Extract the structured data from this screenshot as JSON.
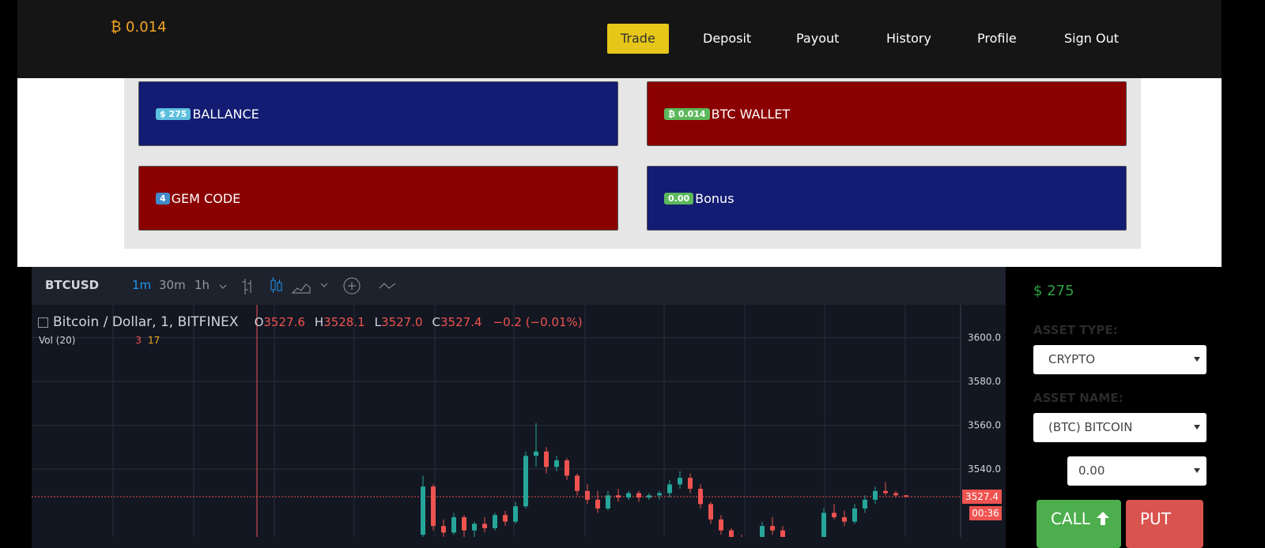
{
  "nav": {
    "balance": "₿ 0.014",
    "links": [
      "Trade",
      "Deposit",
      "Payout",
      "History",
      "Profile",
      "Sign Out"
    ]
  },
  "cards": [
    {
      "badge": "$ 275",
      "label": "BALLANCE"
    },
    {
      "badge": "₿ 0.014",
      "label": "BTC WALLET"
    },
    {
      "badge": "4",
      "label": "GEM CODE"
    },
    {
      "badge": "0.00",
      "label": "Bonus"
    }
  ],
  "toolbar": {
    "symbol": "BTCUSD",
    "intervals": [
      "1m",
      "30m",
      "1h"
    ]
  },
  "chart_data": {
    "type": "candlestick",
    "title": "Bitcoin / Dollar, 1, BITFINEX",
    "ohlc_legend": [
      {
        "key": "O",
        "value": "3527.6"
      },
      {
        "key": "H",
        "value": "3528.1"
      },
      {
        "key": "L",
        "value": "3527.0"
      },
      {
        "key": "C",
        "value": "3527.4"
      }
    ],
    "change": "−0.2 (−0.01%)",
    "volume_label": "Vol (20)",
    "volume_values": [
      "3",
      "17"
    ],
    "last_price_label": "3527.4",
    "countdown": "00:36",
    "up_color": "#26a69a",
    "down_color": "#ef5350",
    "ylim": [
      3509,
      3615
    ],
    "yticks": [
      {
        "value": 3600,
        "label": "3600.0"
      },
      {
        "value": 3580,
        "label": "3580.0"
      },
      {
        "value": 3560,
        "label": "3560.0"
      },
      {
        "value": 3540,
        "label": "3540.0"
      }
    ],
    "open": [
      3510,
      3532,
      3514,
      3511,
      3518,
      3512,
      3515,
      3513,
      3519,
      3516,
      3523,
      3546,
      3548,
      3541,
      3544,
      3537,
      3530,
      3526,
      3522,
      3528,
      3527,
      3529,
      3527,
      3528,
      3529,
      3533,
      3536,
      3531,
      3524,
      3517,
      3512,
      3507,
      3505,
      3506,
      3514,
      3512,
      3506,
      3503,
      3505,
      3507,
      3520,
      3518,
      3516,
      3522,
      3526,
      3530,
      3529,
      3528
    ],
    "high": [
      3537,
      3533,
      3517,
      3520,
      3519,
      3516,
      3518,
      3520,
      3521,
      3525,
      3548,
      3561,
      3550,
      3546,
      3545,
      3538,
      3533,
      3530,
      3530,
      3531,
      3530,
      3530,
      3529,
      3530,
      3535,
      3539,
      3538,
      3533,
      3525,
      3519,
      3513,
      3510,
      3508,
      3516,
      3518,
      3514,
      3508,
      3507,
      3509,
      3522,
      3524,
      3521,
      3524,
      3528,
      3532,
      3534,
      3530,
      3528.1
    ],
    "low": [
      3508,
      3512,
      3508,
      3510,
      3509,
      3506,
      3511,
      3512,
      3514,
      3515,
      3522,
      3541,
      3538,
      3539,
      3535,
      3528,
      3524,
      3520,
      3521,
      3525,
      3526,
      3525,
      3526,
      3526,
      3527,
      3531,
      3529,
      3522,
      3515,
      3510,
      3505,
      3503,
      3501,
      3505,
      3510,
      3504,
      3500,
      3500,
      3503,
      3506,
      3517,
      3514,
      3515,
      3520,
      3524,
      3528,
      3527,
      3527
    ],
    "close": [
      3532,
      3514,
      3511,
      3518,
      3512,
      3515,
      3513,
      3519,
      3516,
      3523,
      3546,
      3548,
      3541,
      3544,
      3537,
      3530,
      3526,
      3522,
      3528,
      3527,
      3529,
      3527,
      3528,
      3529,
      3533,
      3536,
      3531,
      3524,
      3517,
      3512,
      3507,
      3505,
      3506,
      3514,
      3512,
      3506,
      3503,
      3505,
      3507,
      3520,
      3518,
      3516,
      3522,
      3526,
      3530,
      3529,
      3528,
      3527.4
    ]
  },
  "sidebar": {
    "amount": "$ 275",
    "asset_type_label": "ASSET TYPE:",
    "asset_type": "CRYPTO",
    "asset_name_label": "ASSET NAME:",
    "asset_name": "(BTC) BITCOIN",
    "input": "0.00",
    "call": "CALL",
    "put": "PUT"
  }
}
